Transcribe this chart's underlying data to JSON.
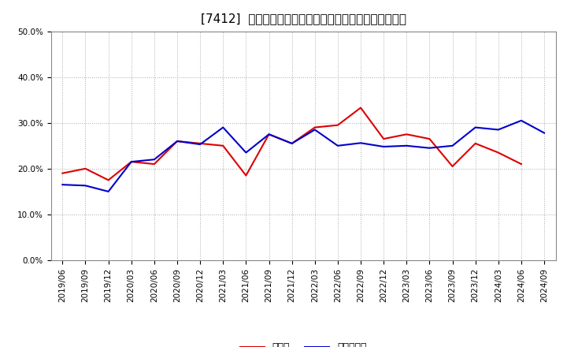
{
  "title": "[7412]  現頴金、有利子負債の総資産に対する比率の推移",
  "labels": [
    "2019/06",
    "2019/09",
    "2019/12",
    "2020/03",
    "2020/06",
    "2020/09",
    "2020/12",
    "2021/03",
    "2021/06",
    "2021/09",
    "2021/12",
    "2022/03",
    "2022/06",
    "2022/09",
    "2022/12",
    "2023/03",
    "2023/06",
    "2023/09",
    "2023/12",
    "2024/03",
    "2024/06",
    "2024/09"
  ],
  "cash": [
    0.19,
    0.2,
    0.175,
    0.215,
    0.21,
    0.26,
    0.255,
    0.25,
    0.185,
    0.275,
    0.255,
    0.29,
    0.295,
    0.333,
    0.265,
    0.275,
    0.265,
    0.205,
    0.255,
    0.235,
    0.21,
    null
  ],
  "debt": [
    0.165,
    0.163,
    0.15,
    0.215,
    0.22,
    0.26,
    0.253,
    0.29,
    0.235,
    0.275,
    0.255,
    0.285,
    0.25,
    0.256,
    0.248,
    0.25,
    0.245,
    0.25,
    0.29,
    0.285,
    0.305,
    0.278
  ],
  "cash_color": "#dd0000",
  "debt_color": "#0000cc",
  "ylim": [
    0.0,
    0.5
  ],
  "yticks": [
    0.0,
    0.1,
    0.2,
    0.3,
    0.4,
    0.5
  ],
  "legend_cash": "現頴金",
  "legend_debt": "有利子負債",
  "bg_color": "#ffffff",
  "plot_bg_color": "#ffffff",
  "grid_color": "#aaaaaa",
  "title_fontsize": 11,
  "tick_fontsize": 7.5,
  "legend_fontsize": 9
}
